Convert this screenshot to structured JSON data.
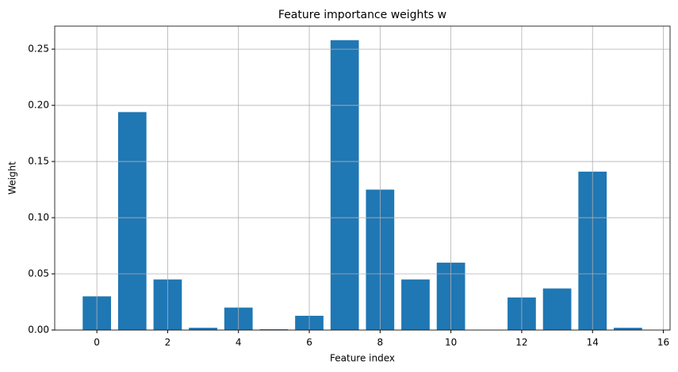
{
  "chart_data": {
    "type": "bar",
    "title": "Feature importance weights w",
    "x_label": "Feature index",
    "y_label": "Weight",
    "x": [
      0,
      1,
      2,
      3,
      4,
      5,
      6,
      7,
      8,
      9,
      10,
      11,
      12,
      13,
      14,
      15
    ],
    "values": [
      0.03,
      0.194,
      0.045,
      0.002,
      0.02,
      0.0007,
      0.0127,
      0.258,
      0.125,
      0.045,
      0.06,
      0,
      0.029,
      0.037,
      0.141,
      0.002
    ],
    "color": "#1f77b4",
    "xlim": [
      -1.19,
      16.19
    ],
    "xticks": [
      0,
      2,
      4,
      6,
      8,
      10,
      12,
      14,
      16
    ],
    "ylim": [
      0,
      0.2705
    ],
    "yticks": [
      {
        "value": 0,
        "label": "0.00"
      },
      {
        "value": 0.05,
        "label": "0.05"
      },
      {
        "value": 0.1,
        "label": "0.10"
      },
      {
        "value": 0.15,
        "label": "0.15"
      },
      {
        "value": 0.2,
        "label": "0.20"
      },
      {
        "value": 0.25,
        "label": "0.25"
      }
    ],
    "grid": true
  }
}
